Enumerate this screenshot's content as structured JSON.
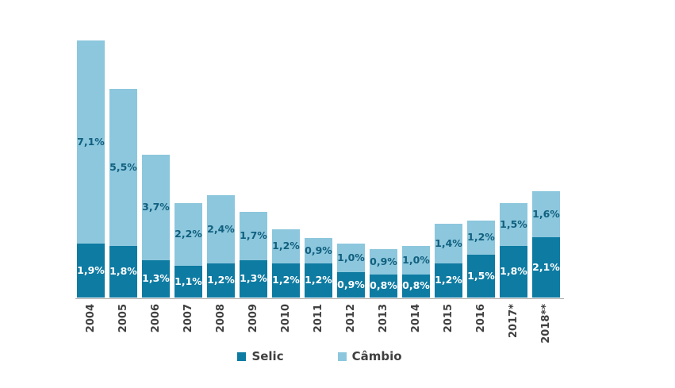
{
  "chart_data": {
    "type": "bar",
    "stacked": true,
    "title": "",
    "xlabel": "",
    "ylabel": "",
    "ylim": [
      0,
      9.2
    ],
    "grid": false,
    "legend_position": "bottom",
    "axis_color": "#a6a6a6",
    "tick_label_color": "#404040",
    "categories": [
      "2004",
      "2005",
      "2006",
      "2007",
      "2008",
      "2009",
      "2010",
      "2011",
      "2012",
      "2013",
      "2014",
      "2015",
      "2016",
      "2017*",
      "2018**"
    ],
    "series": [
      {
        "name": "Selic",
        "color": "#0e7ba2",
        "label_color": "#ffffff",
        "values": [
          1.9,
          1.8,
          1.3,
          1.1,
          1.2,
          1.3,
          1.2,
          1.2,
          0.9,
          0.8,
          0.8,
          1.2,
          1.5,
          1.8,
          2.1
        ],
        "labels": [
          "1,9%",
          "1,8%",
          "1,3%",
          "1,1%",
          "1,2%",
          "1,3%",
          "1,2%",
          "1,2%",
          "0,9%",
          "0,8%",
          "0,8%",
          "1,2%",
          "1,5%",
          "1,8%",
          "2,1%"
        ]
      },
      {
        "name": "Câmbio",
        "color": "#8cc7dd",
        "label_color": "#11607f",
        "values": [
          7.1,
          5.5,
          3.7,
          2.2,
          2.4,
          1.7,
          1.2,
          0.9,
          1.0,
          0.9,
          1.0,
          1.4,
          1.2,
          1.5,
          1.6
        ],
        "labels": [
          "7,1%",
          "5,5%",
          "3,7%",
          "2,2%",
          "2,4%",
          "1,7%",
          "1,2%",
          "0,9%",
          "1,0%",
          "0,9%",
          "1,0%",
          "1,4%",
          "1,2%",
          "1,5%",
          "1,6%"
        ]
      }
    ]
  },
  "legend": {
    "items": [
      {
        "label": "Selic",
        "color": "#0e7ba2"
      },
      {
        "label": "Câmbio",
        "color": "#8cc7dd"
      }
    ]
  }
}
